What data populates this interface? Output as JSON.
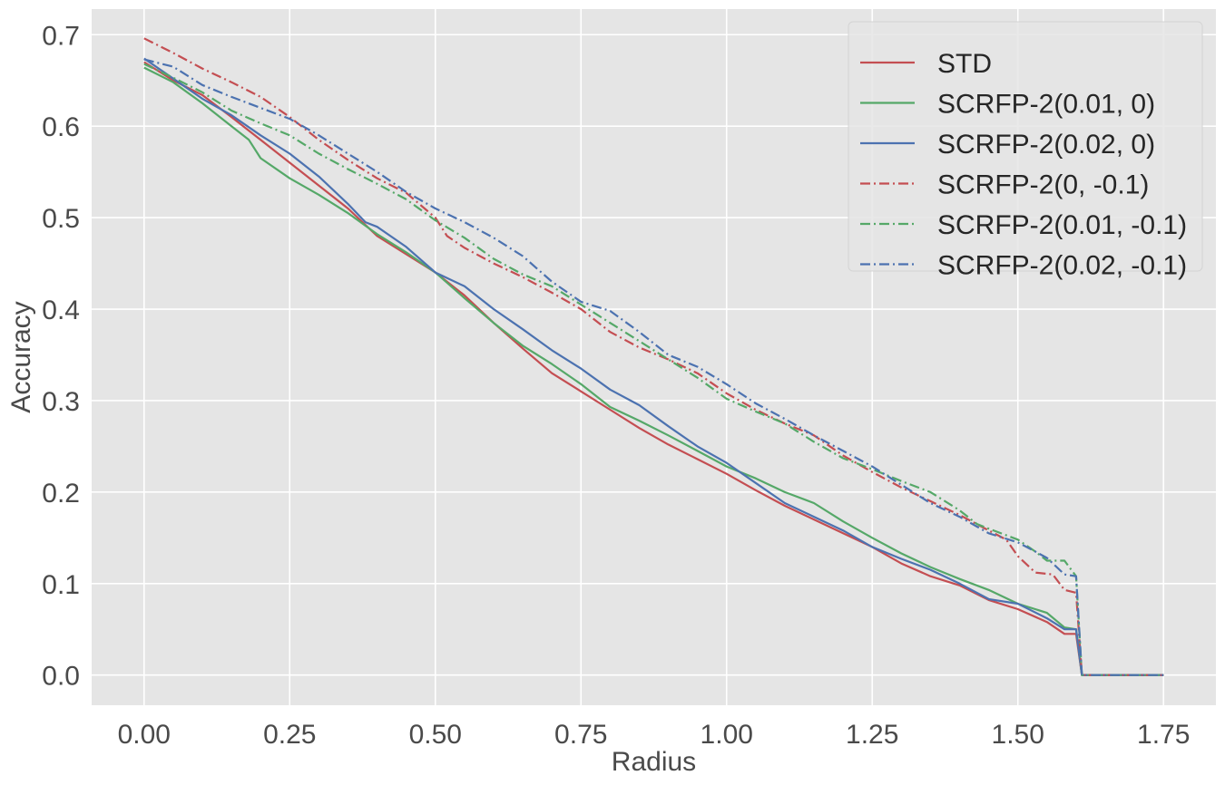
{
  "chart_data": {
    "type": "line",
    "title": "",
    "xlabel": "Radius",
    "ylabel": "Accuracy",
    "xlim": [
      -0.09,
      1.84
    ],
    "ylim": [
      -0.033,
      0.728
    ],
    "xticks": [
      0.0,
      0.25,
      0.5,
      0.75,
      1.0,
      1.25,
      1.5,
      1.75
    ],
    "xtick_labels": [
      "0.00",
      "0.25",
      "0.50",
      "0.75",
      "1.00",
      "1.25",
      "1.50",
      "1.75"
    ],
    "yticks": [
      0.0,
      0.1,
      0.2,
      0.3,
      0.4,
      0.5,
      0.6,
      0.7
    ],
    "ytick_labels": [
      "0.0",
      "0.1",
      "0.2",
      "0.3",
      "0.4",
      "0.5",
      "0.6",
      "0.7"
    ],
    "grid": true,
    "background": "#e5e5e5",
    "grid_color": "#ffffff",
    "legend_position": "top-right",
    "series": [
      {
        "name": "STD",
        "color": "#c44e52",
        "dash": "solid",
        "points": [
          [
            0.0,
            0.67
          ],
          [
            0.05,
            0.65
          ],
          [
            0.1,
            0.634
          ],
          [
            0.15,
            0.61
          ],
          [
            0.2,
            0.585
          ],
          [
            0.25,
            0.56
          ],
          [
            0.3,
            0.535
          ],
          [
            0.35,
            0.51
          ],
          [
            0.4,
            0.48
          ],
          [
            0.45,
            0.46
          ],
          [
            0.5,
            0.44
          ],
          [
            0.55,
            0.415
          ],
          [
            0.6,
            0.385
          ],
          [
            0.65,
            0.357
          ],
          [
            0.7,
            0.33
          ],
          [
            0.75,
            0.31
          ],
          [
            0.8,
            0.29
          ],
          [
            0.85,
            0.27
          ],
          [
            0.9,
            0.252
          ],
          [
            0.95,
            0.236
          ],
          [
            1.0,
            0.22
          ],
          [
            1.05,
            0.202
          ],
          [
            1.1,
            0.185
          ],
          [
            1.15,
            0.17
          ],
          [
            1.2,
            0.155
          ],
          [
            1.25,
            0.14
          ],
          [
            1.3,
            0.122
          ],
          [
            1.35,
            0.108
          ],
          [
            1.4,
            0.098
          ],
          [
            1.45,
            0.082
          ],
          [
            1.5,
            0.072
          ],
          [
            1.55,
            0.058
          ],
          [
            1.58,
            0.045
          ],
          [
            1.6,
            0.045
          ],
          [
            1.61,
            0.0
          ],
          [
            1.75,
            0.0
          ]
        ]
      },
      {
        "name": "SCRFP-2(0.01, 0)",
        "color": "#55a868",
        "dash": "solid",
        "points": [
          [
            0.0,
            0.664
          ],
          [
            0.05,
            0.648
          ],
          [
            0.1,
            0.625
          ],
          [
            0.15,
            0.6
          ],
          [
            0.18,
            0.585
          ],
          [
            0.2,
            0.565
          ],
          [
            0.25,
            0.543
          ],
          [
            0.3,
            0.525
          ],
          [
            0.35,
            0.505
          ],
          [
            0.4,
            0.482
          ],
          [
            0.45,
            0.462
          ],
          [
            0.5,
            0.44
          ],
          [
            0.55,
            0.412
          ],
          [
            0.6,
            0.385
          ],
          [
            0.65,
            0.36
          ],
          [
            0.7,
            0.34
          ],
          [
            0.75,
            0.318
          ],
          [
            0.8,
            0.293
          ],
          [
            0.85,
            0.278
          ],
          [
            0.9,
            0.262
          ],
          [
            0.95,
            0.245
          ],
          [
            1.0,
            0.228
          ],
          [
            1.05,
            0.215
          ],
          [
            1.1,
            0.2
          ],
          [
            1.15,
            0.188
          ],
          [
            1.2,
            0.168
          ],
          [
            1.25,
            0.15
          ],
          [
            1.3,
            0.133
          ],
          [
            1.35,
            0.118
          ],
          [
            1.4,
            0.105
          ],
          [
            1.45,
            0.093
          ],
          [
            1.5,
            0.078
          ],
          [
            1.55,
            0.068
          ],
          [
            1.58,
            0.052
          ],
          [
            1.6,
            0.05
          ],
          [
            1.61,
            0.0
          ],
          [
            1.75,
            0.0
          ]
        ]
      },
      {
        "name": "SCRFP-2(0.02, 0)",
        "color": "#4c72b0",
        "dash": "solid",
        "points": [
          [
            0.0,
            0.674
          ],
          [
            0.05,
            0.652
          ],
          [
            0.1,
            0.63
          ],
          [
            0.15,
            0.612
          ],
          [
            0.2,
            0.59
          ],
          [
            0.25,
            0.57
          ],
          [
            0.3,
            0.545
          ],
          [
            0.35,
            0.515
          ],
          [
            0.38,
            0.495
          ],
          [
            0.4,
            0.49
          ],
          [
            0.45,
            0.468
          ],
          [
            0.5,
            0.44
          ],
          [
            0.55,
            0.425
          ],
          [
            0.6,
            0.4
          ],
          [
            0.65,
            0.378
          ],
          [
            0.7,
            0.355
          ],
          [
            0.75,
            0.335
          ],
          [
            0.8,
            0.312
          ],
          [
            0.85,
            0.295
          ],
          [
            0.9,
            0.272
          ],
          [
            0.95,
            0.25
          ],
          [
            1.0,
            0.232
          ],
          [
            1.05,
            0.21
          ],
          [
            1.1,
            0.188
          ],
          [
            1.15,
            0.173
          ],
          [
            1.2,
            0.158
          ],
          [
            1.25,
            0.14
          ],
          [
            1.3,
            0.127
          ],
          [
            1.35,
            0.115
          ],
          [
            1.4,
            0.1
          ],
          [
            1.45,
            0.083
          ],
          [
            1.5,
            0.078
          ],
          [
            1.55,
            0.062
          ],
          [
            1.58,
            0.05
          ],
          [
            1.6,
            0.05
          ],
          [
            1.61,
            0.0
          ],
          [
            1.75,
            0.0
          ]
        ]
      },
      {
        "name": "SCRFP-2(0, -0.1)",
        "color": "#c44e52",
        "dash": "dashdot",
        "points": [
          [
            0.0,
            0.696
          ],
          [
            0.05,
            0.68
          ],
          [
            0.1,
            0.663
          ],
          [
            0.15,
            0.648
          ],
          [
            0.2,
            0.632
          ],
          [
            0.25,
            0.61
          ],
          [
            0.3,
            0.585
          ],
          [
            0.35,
            0.563
          ],
          [
            0.4,
            0.543
          ],
          [
            0.45,
            0.527
          ],
          [
            0.5,
            0.5
          ],
          [
            0.52,
            0.48
          ],
          [
            0.55,
            0.467
          ],
          [
            0.6,
            0.45
          ],
          [
            0.65,
            0.435
          ],
          [
            0.7,
            0.418
          ],
          [
            0.75,
            0.4
          ],
          [
            0.8,
            0.375
          ],
          [
            0.85,
            0.358
          ],
          [
            0.9,
            0.345
          ],
          [
            0.95,
            0.33
          ],
          [
            1.0,
            0.308
          ],
          [
            1.05,
            0.29
          ],
          [
            1.1,
            0.275
          ],
          [
            1.15,
            0.262
          ],
          [
            1.2,
            0.24
          ],
          [
            1.25,
            0.222
          ],
          [
            1.3,
            0.205
          ],
          [
            1.35,
            0.19
          ],
          [
            1.4,
            0.175
          ],
          [
            1.45,
            0.158
          ],
          [
            1.48,
            0.148
          ],
          [
            1.5,
            0.13
          ],
          [
            1.53,
            0.112
          ],
          [
            1.56,
            0.11
          ],
          [
            1.58,
            0.093
          ],
          [
            1.6,
            0.09
          ],
          [
            1.61,
            0.0
          ],
          [
            1.75,
            0.0
          ]
        ]
      },
      {
        "name": "SCRFP-2(0.01, -0.1)",
        "color": "#55a868",
        "dash": "dashdot",
        "points": [
          [
            0.0,
            0.668
          ],
          [
            0.05,
            0.653
          ],
          [
            0.1,
            0.637
          ],
          [
            0.15,
            0.617
          ],
          [
            0.2,
            0.603
          ],
          [
            0.25,
            0.59
          ],
          [
            0.3,
            0.57
          ],
          [
            0.35,
            0.553
          ],
          [
            0.4,
            0.537
          ],
          [
            0.45,
            0.52
          ],
          [
            0.5,
            0.497
          ],
          [
            0.55,
            0.478
          ],
          [
            0.6,
            0.455
          ],
          [
            0.65,
            0.438
          ],
          [
            0.7,
            0.425
          ],
          [
            0.75,
            0.405
          ],
          [
            0.8,
            0.385
          ],
          [
            0.85,
            0.365
          ],
          [
            0.9,
            0.345
          ],
          [
            0.95,
            0.325
          ],
          [
            1.0,
            0.302
          ],
          [
            1.05,
            0.288
          ],
          [
            1.1,
            0.275
          ],
          [
            1.15,
            0.255
          ],
          [
            1.2,
            0.237
          ],
          [
            1.25,
            0.225
          ],
          [
            1.3,
            0.212
          ],
          [
            1.35,
            0.2
          ],
          [
            1.4,
            0.18
          ],
          [
            1.43,
            0.165
          ],
          [
            1.45,
            0.16
          ],
          [
            1.5,
            0.148
          ],
          [
            1.53,
            0.135
          ],
          [
            1.55,
            0.125
          ],
          [
            1.58,
            0.125
          ],
          [
            1.6,
            0.108
          ],
          [
            1.61,
            0.0
          ],
          [
            1.75,
            0.0
          ]
        ]
      },
      {
        "name": "SCRFP-2(0.02, -0.1)",
        "color": "#4c72b0",
        "dash": "dashdot",
        "points": [
          [
            0.0,
            0.673
          ],
          [
            0.05,
            0.665
          ],
          [
            0.1,
            0.645
          ],
          [
            0.15,
            0.632
          ],
          [
            0.2,
            0.62
          ],
          [
            0.25,
            0.608
          ],
          [
            0.3,
            0.59
          ],
          [
            0.35,
            0.57
          ],
          [
            0.4,
            0.55
          ],
          [
            0.45,
            0.528
          ],
          [
            0.5,
            0.51
          ],
          [
            0.55,
            0.495
          ],
          [
            0.6,
            0.478
          ],
          [
            0.65,
            0.458
          ],
          [
            0.7,
            0.43
          ],
          [
            0.75,
            0.408
          ],
          [
            0.8,
            0.398
          ],
          [
            0.85,
            0.375
          ],
          [
            0.9,
            0.35
          ],
          [
            0.95,
            0.337
          ],
          [
            1.0,
            0.318
          ],
          [
            1.05,
            0.297
          ],
          [
            1.1,
            0.28
          ],
          [
            1.15,
            0.262
          ],
          [
            1.2,
            0.245
          ],
          [
            1.25,
            0.228
          ],
          [
            1.3,
            0.208
          ],
          [
            1.35,
            0.188
          ],
          [
            1.4,
            0.173
          ],
          [
            1.45,
            0.155
          ],
          [
            1.5,
            0.145
          ],
          [
            1.53,
            0.135
          ],
          [
            1.55,
            0.128
          ],
          [
            1.58,
            0.11
          ],
          [
            1.6,
            0.108
          ],
          [
            1.61,
            0.0
          ],
          [
            1.75,
            0.0
          ]
        ]
      }
    ]
  }
}
